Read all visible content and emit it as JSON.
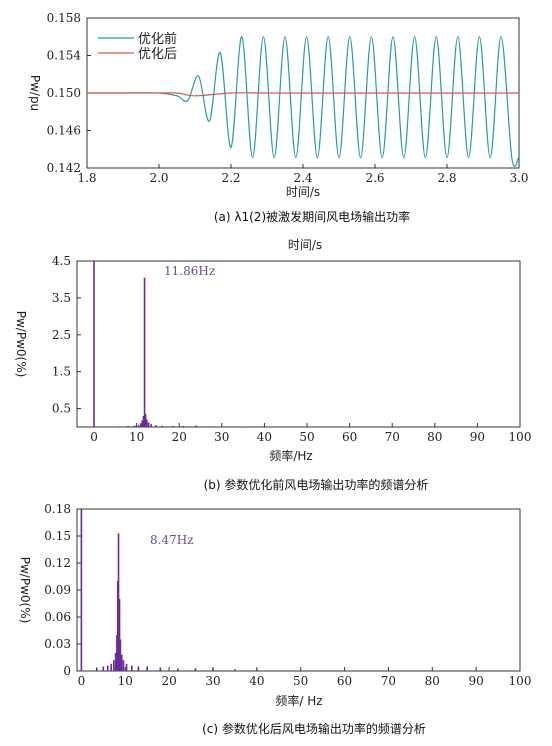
{
  "colors": {
    "teal": "#2a9d9a",
    "red": "#d65a4a",
    "purple": "#6a2a9a",
    "annotation": "#6a4aa0"
  },
  "chart_data": [
    {
      "type": "line",
      "x_range": [
        1.8,
        3.0
      ],
      "ylim": [
        0.142,
        0.158
      ],
      "x_ticks": [
        "1.8",
        "2.0",
        "2.2",
        "2.4",
        "2.6",
        "2.8",
        "3.0"
      ],
      "y_ticks": [
        "0.142",
        "0.146",
        "0.150",
        "0.154",
        "0.158"
      ],
      "xlabel": "时间/s",
      "ylabel": "Pw/pu",
      "caption": "(a) λ1(2)被激发期间风电场输出功率",
      "legend": [
        "优化前",
        "优化后"
      ],
      "series": [
        {
          "name": "优化前",
          "color": "#2a9d9a",
          "x": [
            1.8,
            1.9,
            2.0,
            2.05,
            2.08,
            2.11,
            2.14,
            2.17,
            2.2,
            2.23,
            2.26,
            2.29,
            2.32,
            2.35,
            2.38,
            2.41,
            2.44,
            2.47,
            2.5,
            2.53,
            2.56,
            2.59,
            2.62,
            2.65,
            2.68,
            2.71,
            2.74,
            2.77,
            2.8,
            2.83,
            2.86,
            2.89,
            2.92,
            2.95,
            2.98,
            3.0
          ],
          "values": [
            0.15,
            0.15,
            0.15,
            0.1497,
            0.1492,
            0.1518,
            0.147,
            0.1543,
            0.1442,
            0.156,
            0.1431,
            0.156,
            0.1431,
            0.156,
            0.1431,
            0.156,
            0.1431,
            0.156,
            0.1431,
            0.156,
            0.1431,
            0.156,
            0.1431,
            0.156,
            0.1431,
            0.156,
            0.1431,
            0.156,
            0.1431,
            0.156,
            0.1431,
            0.156,
            0.1431,
            0.156,
            0.1431,
            0.1432
          ]
        },
        {
          "name": "优化后",
          "color": "#d65a4a",
          "x": [
            1.8,
            1.9,
            2.0,
            2.05,
            2.1,
            2.2,
            2.3,
            2.4,
            2.5,
            2.6,
            2.7,
            2.8,
            2.9,
            3.0
          ],
          "values": [
            0.15,
            0.15,
            0.15,
            0.15,
            0.1497,
            0.15,
            0.15,
            0.15,
            0.15,
            0.15,
            0.15,
            0.15,
            0.15,
            0.15
          ]
        }
      ]
    },
    {
      "type": "bar",
      "x_range": [
        -4,
        100
      ],
      "ylim": [
        0,
        4.5
      ],
      "x_ticks": [
        "0",
        "10",
        "20",
        "30",
        "40",
        "50",
        "60",
        "70",
        "80",
        "90",
        "100"
      ],
      "y_ticks": [
        "0.5",
        "1.5",
        "2.5",
        "3.5",
        "4.5"
      ],
      "title": "时间/s",
      "xlabel": "频率/Hz",
      "ylabel": "Pw/Pw0(%)",
      "caption": "(b) 参数优化前风电场输出功率的频谱分析",
      "annotation": "11.86Hz",
      "peaks": {
        "freq": [
          0.0,
          11.86,
          12.1,
          11.6,
          12.4,
          11.3,
          12.8,
          11.0,
          13.4,
          10.5,
          14.5,
          9.5,
          16.0,
          8.0,
          18.5,
          6.0,
          21.0,
          24.0,
          28.0,
          35.0
        ],
        "value": [
          4.5,
          4.05,
          0.35,
          0.3,
          0.2,
          0.18,
          0.12,
          0.1,
          0.08,
          0.06,
          0.05,
          0.04,
          0.035,
          0.03,
          0.03,
          0.02,
          0.03,
          0.04,
          0.02,
          0.01
        ]
      }
    },
    {
      "type": "bar",
      "x_range": [
        -1,
        100
      ],
      "ylim": [
        0,
        0.18
      ],
      "x_ticks": [
        "0",
        "10",
        "20",
        "30",
        "40",
        "50",
        "60",
        "70",
        "80",
        "90",
        "100"
      ],
      "y_ticks": [
        "0",
        "0.03",
        "0.06",
        "0.09",
        "0.12",
        "0.15",
        "0.18"
      ],
      "xlabel": "频率/ Hz",
      "ylabel": "Pw/Pw0(%)",
      "caption": "(c) 参数优化后风电场输出功率的频谱分析",
      "annotation": "8.47Hz",
      "peaks": {
        "freq": [
          0.0,
          8.47,
          8.3,
          8.7,
          8.1,
          8.9,
          7.8,
          9.2,
          7.4,
          9.6,
          6.8,
          10.3,
          6.0,
          11.5,
          5.0,
          13.0,
          3.5,
          15.0,
          18.0,
          22.0,
          26.0,
          30.0,
          35.0,
          40.0
        ],
        "value": [
          0.18,
          0.153,
          0.1,
          0.08,
          0.04,
          0.035,
          0.02,
          0.018,
          0.012,
          0.012,
          0.008,
          0.008,
          0.006,
          0.006,
          0.005,
          0.005,
          0.004,
          0.005,
          0.004,
          0.003,
          0.003,
          0.003,
          0.002,
          0.002
        ]
      }
    }
  ]
}
